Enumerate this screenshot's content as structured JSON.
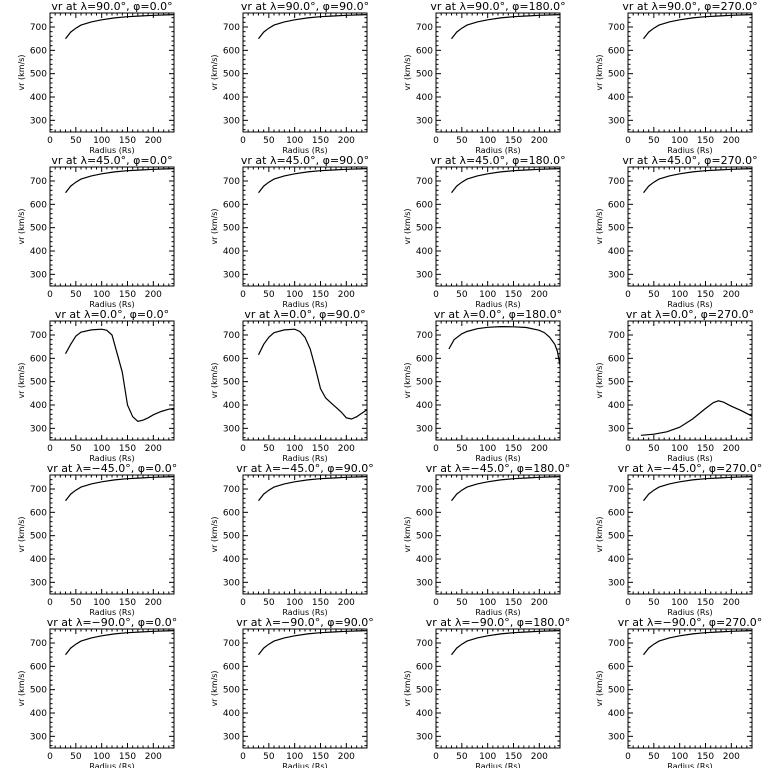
{
  "chart_data": [
    {
      "type": "line",
      "title": "vr at λ=90.0°, φ=0.0°",
      "xlabel": "Radius (Rs)",
      "ylabel": "vr (km/s)",
      "xlim": [
        0,
        240
      ],
      "ylim": [
        250,
        760
      ],
      "xticks": [
        0,
        50,
        100,
        150,
        200
      ],
      "yticks": [
        300,
        400,
        500,
        600,
        700
      ],
      "series": [
        {
          "x": [
            30,
            40,
            50,
            60,
            80,
            100,
            125,
            150,
            175,
            200,
            225,
            240
          ],
          "y": [
            650,
            678,
            695,
            708,
            722,
            731,
            739,
            744,
            747,
            750,
            752,
            753
          ]
        }
      ]
    },
    {
      "type": "line",
      "title": "vr at λ=90.0°, φ=90.0°",
      "xlabel": "Radius (Rs)",
      "ylabel": "vr (km/s)",
      "xlim": [
        0,
        240
      ],
      "ylim": [
        250,
        760
      ],
      "xticks": [
        0,
        50,
        100,
        150,
        200
      ],
      "yticks": [
        300,
        400,
        500,
        600,
        700
      ],
      "series": [
        {
          "x": [
            30,
            40,
            50,
            60,
            80,
            100,
            125,
            150,
            175,
            200,
            225,
            240
          ],
          "y": [
            650,
            678,
            695,
            708,
            722,
            731,
            739,
            744,
            747,
            750,
            752,
            753
          ]
        }
      ]
    },
    {
      "type": "line",
      "title": "vr at λ=90.0°, φ=180.0°",
      "xlabel": "Radius (Rs)",
      "ylabel": "vr (km/s)",
      "xlim": [
        0,
        240
      ],
      "ylim": [
        250,
        760
      ],
      "xticks": [
        0,
        50,
        100,
        150,
        200
      ],
      "yticks": [
        300,
        400,
        500,
        600,
        700
      ],
      "series": [
        {
          "x": [
            30,
            40,
            50,
            60,
            80,
            100,
            125,
            150,
            175,
            200,
            225,
            240
          ],
          "y": [
            650,
            678,
            695,
            708,
            722,
            731,
            739,
            744,
            747,
            750,
            752,
            753
          ]
        }
      ]
    },
    {
      "type": "line",
      "title": "vr at λ=90.0°, φ=270.0°",
      "xlabel": "Radius (Rs)",
      "ylabel": "vr (km/s)",
      "xlim": [
        0,
        240
      ],
      "ylim": [
        250,
        760
      ],
      "xticks": [
        0,
        50,
        100,
        150,
        200
      ],
      "yticks": [
        300,
        400,
        500,
        600,
        700
      ],
      "series": [
        {
          "x": [
            30,
            40,
            50,
            60,
            80,
            100,
            125,
            150,
            175,
            200,
            225,
            240
          ],
          "y": [
            650,
            678,
            695,
            708,
            722,
            731,
            739,
            744,
            747,
            750,
            752,
            753
          ]
        }
      ]
    },
    {
      "type": "line",
      "title": "vr at λ=45.0°, φ=0.0°",
      "xlabel": "Radius (Rs)",
      "ylabel": "vr (km/s)",
      "xlim": [
        0,
        240
      ],
      "ylim": [
        250,
        760
      ],
      "xticks": [
        0,
        50,
        100,
        150,
        200
      ],
      "yticks": [
        300,
        400,
        500,
        600,
        700
      ],
      "series": [
        {
          "x": [
            30,
            40,
            50,
            60,
            80,
            100,
            125,
            150,
            175,
            200,
            225,
            240
          ],
          "y": [
            650,
            678,
            695,
            708,
            722,
            731,
            739,
            744,
            747,
            750,
            752,
            753
          ]
        }
      ]
    },
    {
      "type": "line",
      "title": "vr at λ=45.0°, φ=90.0°",
      "xlabel": "Radius (Rs)",
      "ylabel": "vr (km/s)",
      "xlim": [
        0,
        240
      ],
      "ylim": [
        250,
        760
      ],
      "xticks": [
        0,
        50,
        100,
        150,
        200
      ],
      "yticks": [
        300,
        400,
        500,
        600,
        700
      ],
      "series": [
        {
          "x": [
            30,
            40,
            50,
            60,
            80,
            100,
            125,
            150,
            175,
            200,
            225,
            240
          ],
          "y": [
            650,
            678,
            695,
            708,
            722,
            731,
            739,
            744,
            747,
            750,
            752,
            753
          ]
        }
      ]
    },
    {
      "type": "line",
      "title": "vr at λ=45.0°, φ=180.0°",
      "xlabel": "Radius (Rs)",
      "ylabel": "vr (km/s)",
      "xlim": [
        0,
        240
      ],
      "ylim": [
        250,
        760
      ],
      "xticks": [
        0,
        50,
        100,
        150,
        200
      ],
      "yticks": [
        300,
        400,
        500,
        600,
        700
      ],
      "series": [
        {
          "x": [
            30,
            40,
            50,
            60,
            80,
            100,
            125,
            150,
            175,
            200,
            225,
            240
          ],
          "y": [
            650,
            678,
            695,
            708,
            722,
            731,
            739,
            744,
            747,
            750,
            752,
            753
          ]
        }
      ]
    },
    {
      "type": "line",
      "title": "vr at λ=45.0°, φ=270.0°",
      "xlabel": "Radius (Rs)",
      "ylabel": "vr (km/s)",
      "xlim": [
        0,
        240
      ],
      "ylim": [
        250,
        760
      ],
      "xticks": [
        0,
        50,
        100,
        150,
        200
      ],
      "yticks": [
        300,
        400,
        500,
        600,
        700
      ],
      "series": [
        {
          "x": [
            30,
            40,
            50,
            60,
            80,
            100,
            125,
            150,
            175,
            200,
            225,
            240
          ],
          "y": [
            650,
            678,
            695,
            708,
            722,
            731,
            739,
            744,
            747,
            750,
            752,
            753
          ]
        }
      ]
    },
    {
      "type": "line",
      "title": "vr at λ=0.0°, φ=0.0°",
      "xlabel": "Radius (Rs)",
      "ylabel": "vr (km/s)",
      "xlim": [
        0,
        240
      ],
      "ylim": [
        250,
        760
      ],
      "xticks": [
        0,
        50,
        100,
        150,
        200
      ],
      "yticks": [
        300,
        400,
        500,
        600,
        700
      ],
      "series": [
        {
          "x": [
            30,
            40,
            50,
            60,
            80,
            100,
            110,
            120,
            130,
            140,
            145,
            150,
            160,
            170,
            180,
            190,
            200,
            215,
            230,
            240
          ],
          "y": [
            620,
            660,
            695,
            712,
            722,
            725,
            720,
            700,
            620,
            540,
            470,
            400,
            350,
            330,
            335,
            345,
            358,
            372,
            382,
            385
          ]
        }
      ]
    },
    {
      "type": "line",
      "title": "vr at λ=0.0°, φ=90.0°",
      "xlabel": "Radius (Rs)",
      "ylabel": "vr (km/s)",
      "xlim": [
        0,
        240
      ],
      "ylim": [
        250,
        760
      ],
      "xticks": [
        0,
        50,
        100,
        150,
        200
      ],
      "yticks": [
        300,
        400,
        500,
        600,
        700
      ],
      "series": [
        {
          "x": [
            30,
            40,
            50,
            60,
            80,
            100,
            110,
            120,
            130,
            140,
            150,
            160,
            170,
            180,
            190,
            200,
            210,
            220,
            230,
            240
          ],
          "y": [
            615,
            660,
            690,
            710,
            722,
            725,
            715,
            690,
            640,
            560,
            470,
            430,
            410,
            390,
            370,
            345,
            340,
            350,
            365,
            380
          ]
        }
      ]
    },
    {
      "type": "line",
      "title": "vr at λ=0.0°, φ=180.0°",
      "xlabel": "Radius (Rs)",
      "ylabel": "vr (km/s)",
      "xlim": [
        0,
        240
      ],
      "ylim": [
        250,
        760
      ],
      "xticks": [
        0,
        50,
        100,
        150,
        200
      ],
      "yticks": [
        300,
        400,
        500,
        600,
        700
      ],
      "series": [
        {
          "x": [
            25,
            35,
            50,
            60,
            80,
            100,
            125,
            150,
            175,
            200,
            210,
            220,
            230,
            235,
            240
          ],
          "y": [
            640,
            680,
            705,
            715,
            727,
            733,
            736,
            735,
            732,
            720,
            710,
            690,
            660,
            630,
            570
          ]
        }
      ]
    },
    {
      "type": "line",
      "title": "vr at λ=0.0°, φ=270.0°",
      "xlabel": "Radius (Rs)",
      "ylabel": "vr (km/s)",
      "xlim": [
        0,
        240
      ],
      "ylim": [
        250,
        760
      ],
      "xticks": [
        0,
        50,
        100,
        150,
        200
      ],
      "yticks": [
        300,
        400,
        500,
        600,
        700
      ],
      "series": [
        {
          "x": [
            25,
            50,
            75,
            100,
            125,
            150,
            165,
            175,
            185,
            200,
            220,
            240
          ],
          "y": [
            270,
            275,
            285,
            305,
            340,
            385,
            410,
            418,
            412,
            395,
            375,
            352
          ]
        }
      ]
    },
    {
      "type": "line",
      "title": "vr at λ=−45.0°, φ=0.0°",
      "xlabel": "Radius (Rs)",
      "ylabel": "vr (km/s)",
      "xlim": [
        0,
        240
      ],
      "ylim": [
        250,
        760
      ],
      "xticks": [
        0,
        50,
        100,
        150,
        200
      ],
      "yticks": [
        300,
        400,
        500,
        600,
        700
      ],
      "series": [
        {
          "x": [
            30,
            40,
            50,
            60,
            80,
            100,
            125,
            150,
            175,
            200,
            225,
            240
          ],
          "y": [
            650,
            678,
            695,
            708,
            722,
            731,
            739,
            744,
            747,
            750,
            752,
            753
          ]
        }
      ]
    },
    {
      "type": "line",
      "title": "vr at λ=−45.0°, φ=90.0°",
      "xlabel": "Radius (Rs)",
      "ylabel": "vr (km/s)",
      "xlim": [
        0,
        240
      ],
      "ylim": [
        250,
        760
      ],
      "xticks": [
        0,
        50,
        100,
        150,
        200
      ],
      "yticks": [
        300,
        400,
        500,
        600,
        700
      ],
      "series": [
        {
          "x": [
            30,
            40,
            50,
            60,
            80,
            100,
            125,
            150,
            175,
            200,
            225,
            240
          ],
          "y": [
            650,
            678,
            695,
            708,
            722,
            731,
            739,
            744,
            747,
            750,
            752,
            753
          ]
        }
      ]
    },
    {
      "type": "line",
      "title": "vr at λ=−45.0°, φ=180.0°",
      "xlabel": "Radius (Rs)",
      "ylabel": "vr (km/s)",
      "xlim": [
        0,
        240
      ],
      "ylim": [
        250,
        760
      ],
      "xticks": [
        0,
        50,
        100,
        150,
        200
      ],
      "yticks": [
        300,
        400,
        500,
        600,
        700
      ],
      "series": [
        {
          "x": [
            30,
            40,
            50,
            60,
            80,
            100,
            125,
            150,
            175,
            200,
            225,
            240
          ],
          "y": [
            650,
            678,
            695,
            708,
            722,
            731,
            739,
            744,
            747,
            750,
            752,
            753
          ]
        }
      ]
    },
    {
      "type": "line",
      "title": "vr at λ=−45.0°, φ=270.0°",
      "xlabel": "Radius (Rs)",
      "ylabel": "vr (km/s)",
      "xlim": [
        0,
        240
      ],
      "ylim": [
        250,
        760
      ],
      "xticks": [
        0,
        50,
        100,
        150,
        200
      ],
      "yticks": [
        300,
        400,
        500,
        600,
        700
      ],
      "series": [
        {
          "x": [
            30,
            40,
            50,
            60,
            80,
            100,
            125,
            150,
            175,
            200,
            225,
            240
          ],
          "y": [
            650,
            678,
            695,
            708,
            722,
            731,
            739,
            744,
            747,
            750,
            752,
            753
          ]
        }
      ]
    },
    {
      "type": "line",
      "title": "vr at λ=−90.0°, φ=0.0°",
      "xlabel": "Radius (Rs)",
      "ylabel": "vr (km/s)",
      "xlim": [
        0,
        240
      ],
      "ylim": [
        250,
        760
      ],
      "xticks": [
        0,
        50,
        100,
        150,
        200
      ],
      "yticks": [
        300,
        400,
        500,
        600,
        700
      ],
      "series": [
        {
          "x": [
            30,
            40,
            50,
            60,
            80,
            100,
            125,
            150,
            175,
            200,
            225,
            240
          ],
          "y": [
            650,
            678,
            695,
            708,
            722,
            731,
            739,
            744,
            747,
            750,
            752,
            753
          ]
        }
      ]
    },
    {
      "type": "line",
      "title": "vr at λ=−90.0°, φ=90.0°",
      "xlabel": "Radius (Rs)",
      "ylabel": "vr (km/s)",
      "xlim": [
        0,
        240
      ],
      "ylim": [
        250,
        760
      ],
      "xticks": [
        0,
        50,
        100,
        150,
        200
      ],
      "yticks": [
        300,
        400,
        500,
        600,
        700
      ],
      "series": [
        {
          "x": [
            30,
            40,
            50,
            60,
            80,
            100,
            125,
            150,
            175,
            200,
            225,
            240
          ],
          "y": [
            650,
            678,
            695,
            708,
            722,
            731,
            739,
            744,
            747,
            750,
            752,
            753
          ]
        }
      ]
    },
    {
      "type": "line",
      "title": "vr at λ=−90.0°, φ=180.0°",
      "xlabel": "Radius (Rs)",
      "ylabel": "vr (km/s)",
      "xlim": [
        0,
        240
      ],
      "ylim": [
        250,
        760
      ],
      "xticks": [
        0,
        50,
        100,
        150,
        200
      ],
      "yticks": [
        300,
        400,
        500,
        600,
        700
      ],
      "series": [
        {
          "x": [
            30,
            40,
            50,
            60,
            80,
            100,
            125,
            150,
            175,
            200,
            225,
            240
          ],
          "y": [
            650,
            678,
            695,
            708,
            722,
            731,
            739,
            744,
            747,
            750,
            752,
            753
          ]
        }
      ]
    },
    {
      "type": "line",
      "title": "vr at λ=−90.0°, φ=270.0°",
      "xlabel": "Radius (Rs)",
      "ylabel": "vr (km/s)",
      "xlim": [
        0,
        240
      ],
      "ylim": [
        250,
        760
      ],
      "xticks": [
        0,
        50,
        100,
        150,
        200
      ],
      "yticks": [
        300,
        400,
        500,
        600,
        700
      ],
      "series": [
        {
          "x": [
            30,
            40,
            50,
            60,
            80,
            100,
            125,
            150,
            175,
            200,
            225,
            240
          ],
          "y": [
            650,
            678,
            695,
            708,
            722,
            731,
            739,
            744,
            747,
            750,
            752,
            753
          ]
        }
      ]
    }
  ]
}
